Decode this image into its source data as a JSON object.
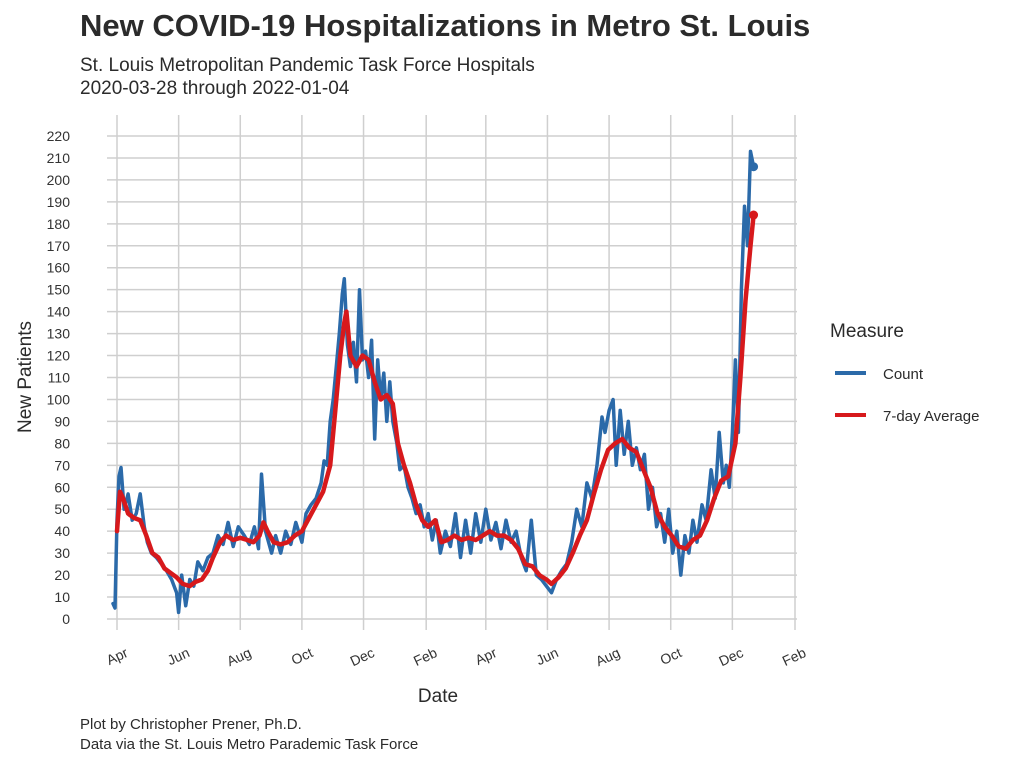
{
  "chart_data": {
    "type": "line",
    "title": "New COVID-19 Hospitalizations in Metro St. Louis",
    "subtitle": [
      "St. Louis Metropolitan Pandemic Task Force Hospitals",
      "2020-03-28 through 2022-01-04"
    ],
    "caption": [
      "Plot by Christopher Prener, Ph.D.",
      "Data via the St. Louis Metro Parademic Task Force"
    ],
    "xlabel": "Date",
    "ylabel": "New Patients",
    "ylim": [
      0,
      220
    ],
    "yticks": [
      0,
      10,
      20,
      30,
      40,
      50,
      60,
      70,
      80,
      90,
      100,
      110,
      120,
      130,
      140,
      150,
      160,
      170,
      180,
      190,
      200,
      210,
      220
    ],
    "xlim": [
      "2020-03-28",
      "2022-02-01"
    ],
    "xticks": [
      {
        "date": "2020-04-01",
        "label": "Apr"
      },
      {
        "date": "2020-06-01",
        "label": "Jun"
      },
      {
        "date": "2020-08-01",
        "label": "Aug"
      },
      {
        "date": "2020-10-01",
        "label": "Oct"
      },
      {
        "date": "2020-12-01",
        "label": "Dec"
      },
      {
        "date": "2021-02-01",
        "label": "Feb"
      },
      {
        "date": "2021-04-01",
        "label": "Apr"
      },
      {
        "date": "2021-06-01",
        "label": "Jun"
      },
      {
        "date": "2021-08-01",
        "label": "Aug"
      },
      {
        "date": "2021-10-01",
        "label": "Oct"
      },
      {
        "date": "2021-12-01",
        "label": "Dec"
      },
      {
        "date": "2022-02-01",
        "label": "Feb"
      }
    ],
    "grid": true,
    "legend": {
      "title": "Measure",
      "position": "right"
    },
    "series": [
      {
        "name": "Count",
        "color": "#2b6aa9",
        "end_point": true,
        "points": [
          [
            "2020-03-28",
            7
          ],
          [
            "2020-03-30",
            5
          ],
          [
            "2020-04-01",
            45
          ],
          [
            "2020-04-03",
            65
          ],
          [
            "2020-04-05",
            69
          ],
          [
            "2020-04-08",
            50
          ],
          [
            "2020-04-12",
            57
          ],
          [
            "2020-04-16",
            45
          ],
          [
            "2020-04-20",
            48
          ],
          [
            "2020-04-24",
            57
          ],
          [
            "2020-04-28",
            42
          ],
          [
            "2020-05-01",
            35
          ],
          [
            "2020-05-05",
            30
          ],
          [
            "2020-05-10",
            28
          ],
          [
            "2020-05-15",
            25
          ],
          [
            "2020-05-20",
            22
          ],
          [
            "2020-05-25",
            18
          ],
          [
            "2020-05-30",
            12
          ],
          [
            "2020-06-01",
            3
          ],
          [
            "2020-06-04",
            20
          ],
          [
            "2020-06-08",
            6
          ],
          [
            "2020-06-12",
            18
          ],
          [
            "2020-06-16",
            15
          ],
          [
            "2020-06-20",
            26
          ],
          [
            "2020-06-25",
            22
          ],
          [
            "2020-06-30",
            28
          ],
          [
            "2020-07-05",
            30
          ],
          [
            "2020-07-10",
            38
          ],
          [
            "2020-07-15",
            34
          ],
          [
            "2020-07-20",
            44
          ],
          [
            "2020-07-25",
            33
          ],
          [
            "2020-07-30",
            42
          ],
          [
            "2020-08-05",
            38
          ],
          [
            "2020-08-10",
            34
          ],
          [
            "2020-08-15",
            42
          ],
          [
            "2020-08-19",
            32
          ],
          [
            "2020-08-22",
            66
          ],
          [
            "2020-08-26",
            40
          ],
          [
            "2020-09-01",
            30
          ],
          [
            "2020-09-05",
            38
          ],
          [
            "2020-09-10",
            30
          ],
          [
            "2020-09-15",
            40
          ],
          [
            "2020-09-20",
            34
          ],
          [
            "2020-09-25",
            44
          ],
          [
            "2020-10-01",
            35
          ],
          [
            "2020-10-05",
            48
          ],
          [
            "2020-10-10",
            52
          ],
          [
            "2020-10-15",
            55
          ],
          [
            "2020-10-20",
            62
          ],
          [
            "2020-10-23",
            72
          ],
          [
            "2020-10-26",
            70
          ],
          [
            "2020-10-29",
            90
          ],
          [
            "2020-11-01",
            100
          ],
          [
            "2020-11-04",
            115
          ],
          [
            "2020-11-07",
            130
          ],
          [
            "2020-11-10",
            148
          ],
          [
            "2020-11-12",
            155
          ],
          [
            "2020-11-15",
            125
          ],
          [
            "2020-11-18",
            115
          ],
          [
            "2020-11-21",
            126
          ],
          [
            "2020-11-24",
            108
          ],
          [
            "2020-11-27",
            150
          ],
          [
            "2020-11-30",
            118
          ],
          [
            "2020-12-03",
            122
          ],
          [
            "2020-12-06",
            110
          ],
          [
            "2020-12-09",
            127
          ],
          [
            "2020-12-12",
            82
          ],
          [
            "2020-12-15",
            118
          ],
          [
            "2020-12-18",
            100
          ],
          [
            "2020-12-21",
            112
          ],
          [
            "2020-12-24",
            90
          ],
          [
            "2020-12-27",
            108
          ],
          [
            "2020-12-30",
            90
          ],
          [
            "2021-01-03",
            80
          ],
          [
            "2021-01-06",
            68
          ],
          [
            "2021-01-10",
            70
          ],
          [
            "2021-01-14",
            60
          ],
          [
            "2021-01-18",
            55
          ],
          [
            "2021-01-22",
            48
          ],
          [
            "2021-01-26",
            52
          ],
          [
            "2021-01-30",
            42
          ],
          [
            "2021-02-03",
            48
          ],
          [
            "2021-02-07",
            36
          ],
          [
            "2021-02-11",
            45
          ],
          [
            "2021-02-15",
            30
          ],
          [
            "2021-02-20",
            40
          ],
          [
            "2021-02-25",
            33
          ],
          [
            "2021-03-02",
            48
          ],
          [
            "2021-03-07",
            28
          ],
          [
            "2021-03-12",
            45
          ],
          [
            "2021-03-17",
            30
          ],
          [
            "2021-03-22",
            48
          ],
          [
            "2021-03-27",
            35
          ],
          [
            "2021-04-01",
            50
          ],
          [
            "2021-04-06",
            36
          ],
          [
            "2021-04-11",
            44
          ],
          [
            "2021-04-16",
            32
          ],
          [
            "2021-04-21",
            45
          ],
          [
            "2021-04-26",
            35
          ],
          [
            "2021-05-01",
            40
          ],
          [
            "2021-05-06",
            28
          ],
          [
            "2021-05-11",
            22
          ],
          [
            "2021-05-16",
            45
          ],
          [
            "2021-05-21",
            20
          ],
          [
            "2021-05-26",
            18
          ],
          [
            "2021-05-31",
            15
          ],
          [
            "2021-06-05",
            12
          ],
          [
            "2021-06-10",
            18
          ],
          [
            "2021-06-15",
            22
          ],
          [
            "2021-06-20",
            25
          ],
          [
            "2021-06-25",
            35
          ],
          [
            "2021-06-30",
            50
          ],
          [
            "2021-07-05",
            42
          ],
          [
            "2021-07-10",
            62
          ],
          [
            "2021-07-15",
            55
          ],
          [
            "2021-07-20",
            70
          ],
          [
            "2021-07-25",
            92
          ],
          [
            "2021-07-28",
            85
          ],
          [
            "2021-08-01",
            95
          ],
          [
            "2021-08-05",
            100
          ],
          [
            "2021-08-08",
            70
          ],
          [
            "2021-08-12",
            95
          ],
          [
            "2021-08-16",
            75
          ],
          [
            "2021-08-20",
            90
          ],
          [
            "2021-08-24",
            70
          ],
          [
            "2021-08-28",
            78
          ],
          [
            "2021-09-01",
            68
          ],
          [
            "2021-09-05",
            75
          ],
          [
            "2021-09-09",
            50
          ],
          [
            "2021-09-13",
            60
          ],
          [
            "2021-09-17",
            42
          ],
          [
            "2021-09-21",
            48
          ],
          [
            "2021-09-25",
            35
          ],
          [
            "2021-09-29",
            50
          ],
          [
            "2021-10-03",
            30
          ],
          [
            "2021-10-07",
            40
          ],
          [
            "2021-10-11",
            20
          ],
          [
            "2021-10-15",
            38
          ],
          [
            "2021-10-19",
            30
          ],
          [
            "2021-10-23",
            45
          ],
          [
            "2021-10-27",
            35
          ],
          [
            "2021-11-01",
            52
          ],
          [
            "2021-11-05",
            45
          ],
          [
            "2021-11-10",
            68
          ],
          [
            "2021-11-14",
            55
          ],
          [
            "2021-11-18",
            85
          ],
          [
            "2021-11-22",
            62
          ],
          [
            "2021-11-25",
            70
          ],
          [
            "2021-11-28",
            60
          ],
          [
            "2021-12-01",
            85
          ],
          [
            "2021-12-04",
            118
          ],
          [
            "2021-12-07",
            85
          ],
          [
            "2021-12-10",
            150
          ],
          [
            "2021-12-13",
            188
          ],
          [
            "2021-12-16",
            170
          ],
          [
            "2021-12-19",
            213
          ],
          [
            "2021-12-22",
            206
          ]
        ]
      },
      {
        "name": "7-day Average",
        "color": "#d7191c",
        "end_point": true,
        "points": [
          [
            "2020-04-01",
            40
          ],
          [
            "2020-04-04",
            58
          ],
          [
            "2020-04-07",
            55
          ],
          [
            "2020-04-12",
            48
          ],
          [
            "2020-04-18",
            46
          ],
          [
            "2020-04-24",
            45
          ],
          [
            "2020-04-30",
            38
          ],
          [
            "2020-05-06",
            30
          ],
          [
            "2020-05-12",
            28
          ],
          [
            "2020-05-18",
            23
          ],
          [
            "2020-05-24",
            21
          ],
          [
            "2020-05-30",
            19
          ],
          [
            "2020-06-05",
            16
          ],
          [
            "2020-06-12",
            15
          ],
          [
            "2020-06-18",
            17
          ],
          [
            "2020-06-24",
            18
          ],
          [
            "2020-06-30",
            22
          ],
          [
            "2020-07-05",
            28
          ],
          [
            "2020-07-12",
            35
          ],
          [
            "2020-07-18",
            38
          ],
          [
            "2020-07-25",
            36
          ],
          [
            "2020-08-01",
            37
          ],
          [
            "2020-08-08",
            36
          ],
          [
            "2020-08-14",
            35
          ],
          [
            "2020-08-20",
            38
          ],
          [
            "2020-08-24",
            44
          ],
          [
            "2020-08-28",
            40
          ],
          [
            "2020-09-03",
            35
          ],
          [
            "2020-09-10",
            34
          ],
          [
            "2020-09-17",
            35
          ],
          [
            "2020-09-24",
            38
          ],
          [
            "2020-10-01",
            40
          ],
          [
            "2020-10-08",
            46
          ],
          [
            "2020-10-15",
            52
          ],
          [
            "2020-10-22",
            58
          ],
          [
            "2020-10-29",
            70
          ],
          [
            "2020-11-03",
            95
          ],
          [
            "2020-11-08",
            120
          ],
          [
            "2020-11-12",
            135
          ],
          [
            "2020-11-14",
            140
          ],
          [
            "2020-11-18",
            120
          ],
          [
            "2020-11-24",
            115
          ],
          [
            "2020-11-30",
            120
          ],
          [
            "2020-12-06",
            118
          ],
          [
            "2020-12-12",
            108
          ],
          [
            "2020-12-18",
            100
          ],
          [
            "2020-12-24",
            102
          ],
          [
            "2020-12-30",
            98
          ],
          [
            "2021-01-04",
            80
          ],
          [
            "2021-01-10",
            70
          ],
          [
            "2021-01-16",
            62
          ],
          [
            "2021-01-22",
            52
          ],
          [
            "2021-01-28",
            45
          ],
          [
            "2021-02-03",
            42
          ],
          [
            "2021-02-10",
            45
          ],
          [
            "2021-02-16",
            35
          ],
          [
            "2021-02-22",
            36
          ],
          [
            "2021-03-01",
            38
          ],
          [
            "2021-03-08",
            36
          ],
          [
            "2021-03-15",
            37
          ],
          [
            "2021-03-22",
            36
          ],
          [
            "2021-03-29",
            38
          ],
          [
            "2021-04-05",
            40
          ],
          [
            "2021-04-12",
            38
          ],
          [
            "2021-04-19",
            38
          ],
          [
            "2021-04-26",
            36
          ],
          [
            "2021-05-03",
            32
          ],
          [
            "2021-05-10",
            25
          ],
          [
            "2021-05-17",
            24
          ],
          [
            "2021-05-24",
            20
          ],
          [
            "2021-05-31",
            18
          ],
          [
            "2021-06-05",
            16
          ],
          [
            "2021-06-12",
            19
          ],
          [
            "2021-06-19",
            23
          ],
          [
            "2021-06-26",
            30
          ],
          [
            "2021-07-03",
            38
          ],
          [
            "2021-07-10",
            45
          ],
          [
            "2021-07-17",
            57
          ],
          [
            "2021-07-24",
            68
          ],
          [
            "2021-07-31",
            77
          ],
          [
            "2021-08-07",
            80
          ],
          [
            "2021-08-14",
            82
          ],
          [
            "2021-08-21",
            78
          ],
          [
            "2021-08-28",
            76
          ],
          [
            "2021-09-04",
            68
          ],
          [
            "2021-09-11",
            60
          ],
          [
            "2021-09-18",
            48
          ],
          [
            "2021-09-25",
            42
          ],
          [
            "2021-10-02",
            38
          ],
          [
            "2021-10-09",
            33
          ],
          [
            "2021-10-16",
            32
          ],
          [
            "2021-10-23",
            36
          ],
          [
            "2021-10-30",
            38
          ],
          [
            "2021-11-06",
            45
          ],
          [
            "2021-11-13",
            55
          ],
          [
            "2021-11-20",
            63
          ],
          [
            "2021-11-27",
            65
          ],
          [
            "2021-12-04",
            80
          ],
          [
            "2021-12-09",
            110
          ],
          [
            "2021-12-14",
            145
          ],
          [
            "2021-12-19",
            170
          ],
          [
            "2021-12-22",
            184
          ]
        ]
      }
    ]
  }
}
